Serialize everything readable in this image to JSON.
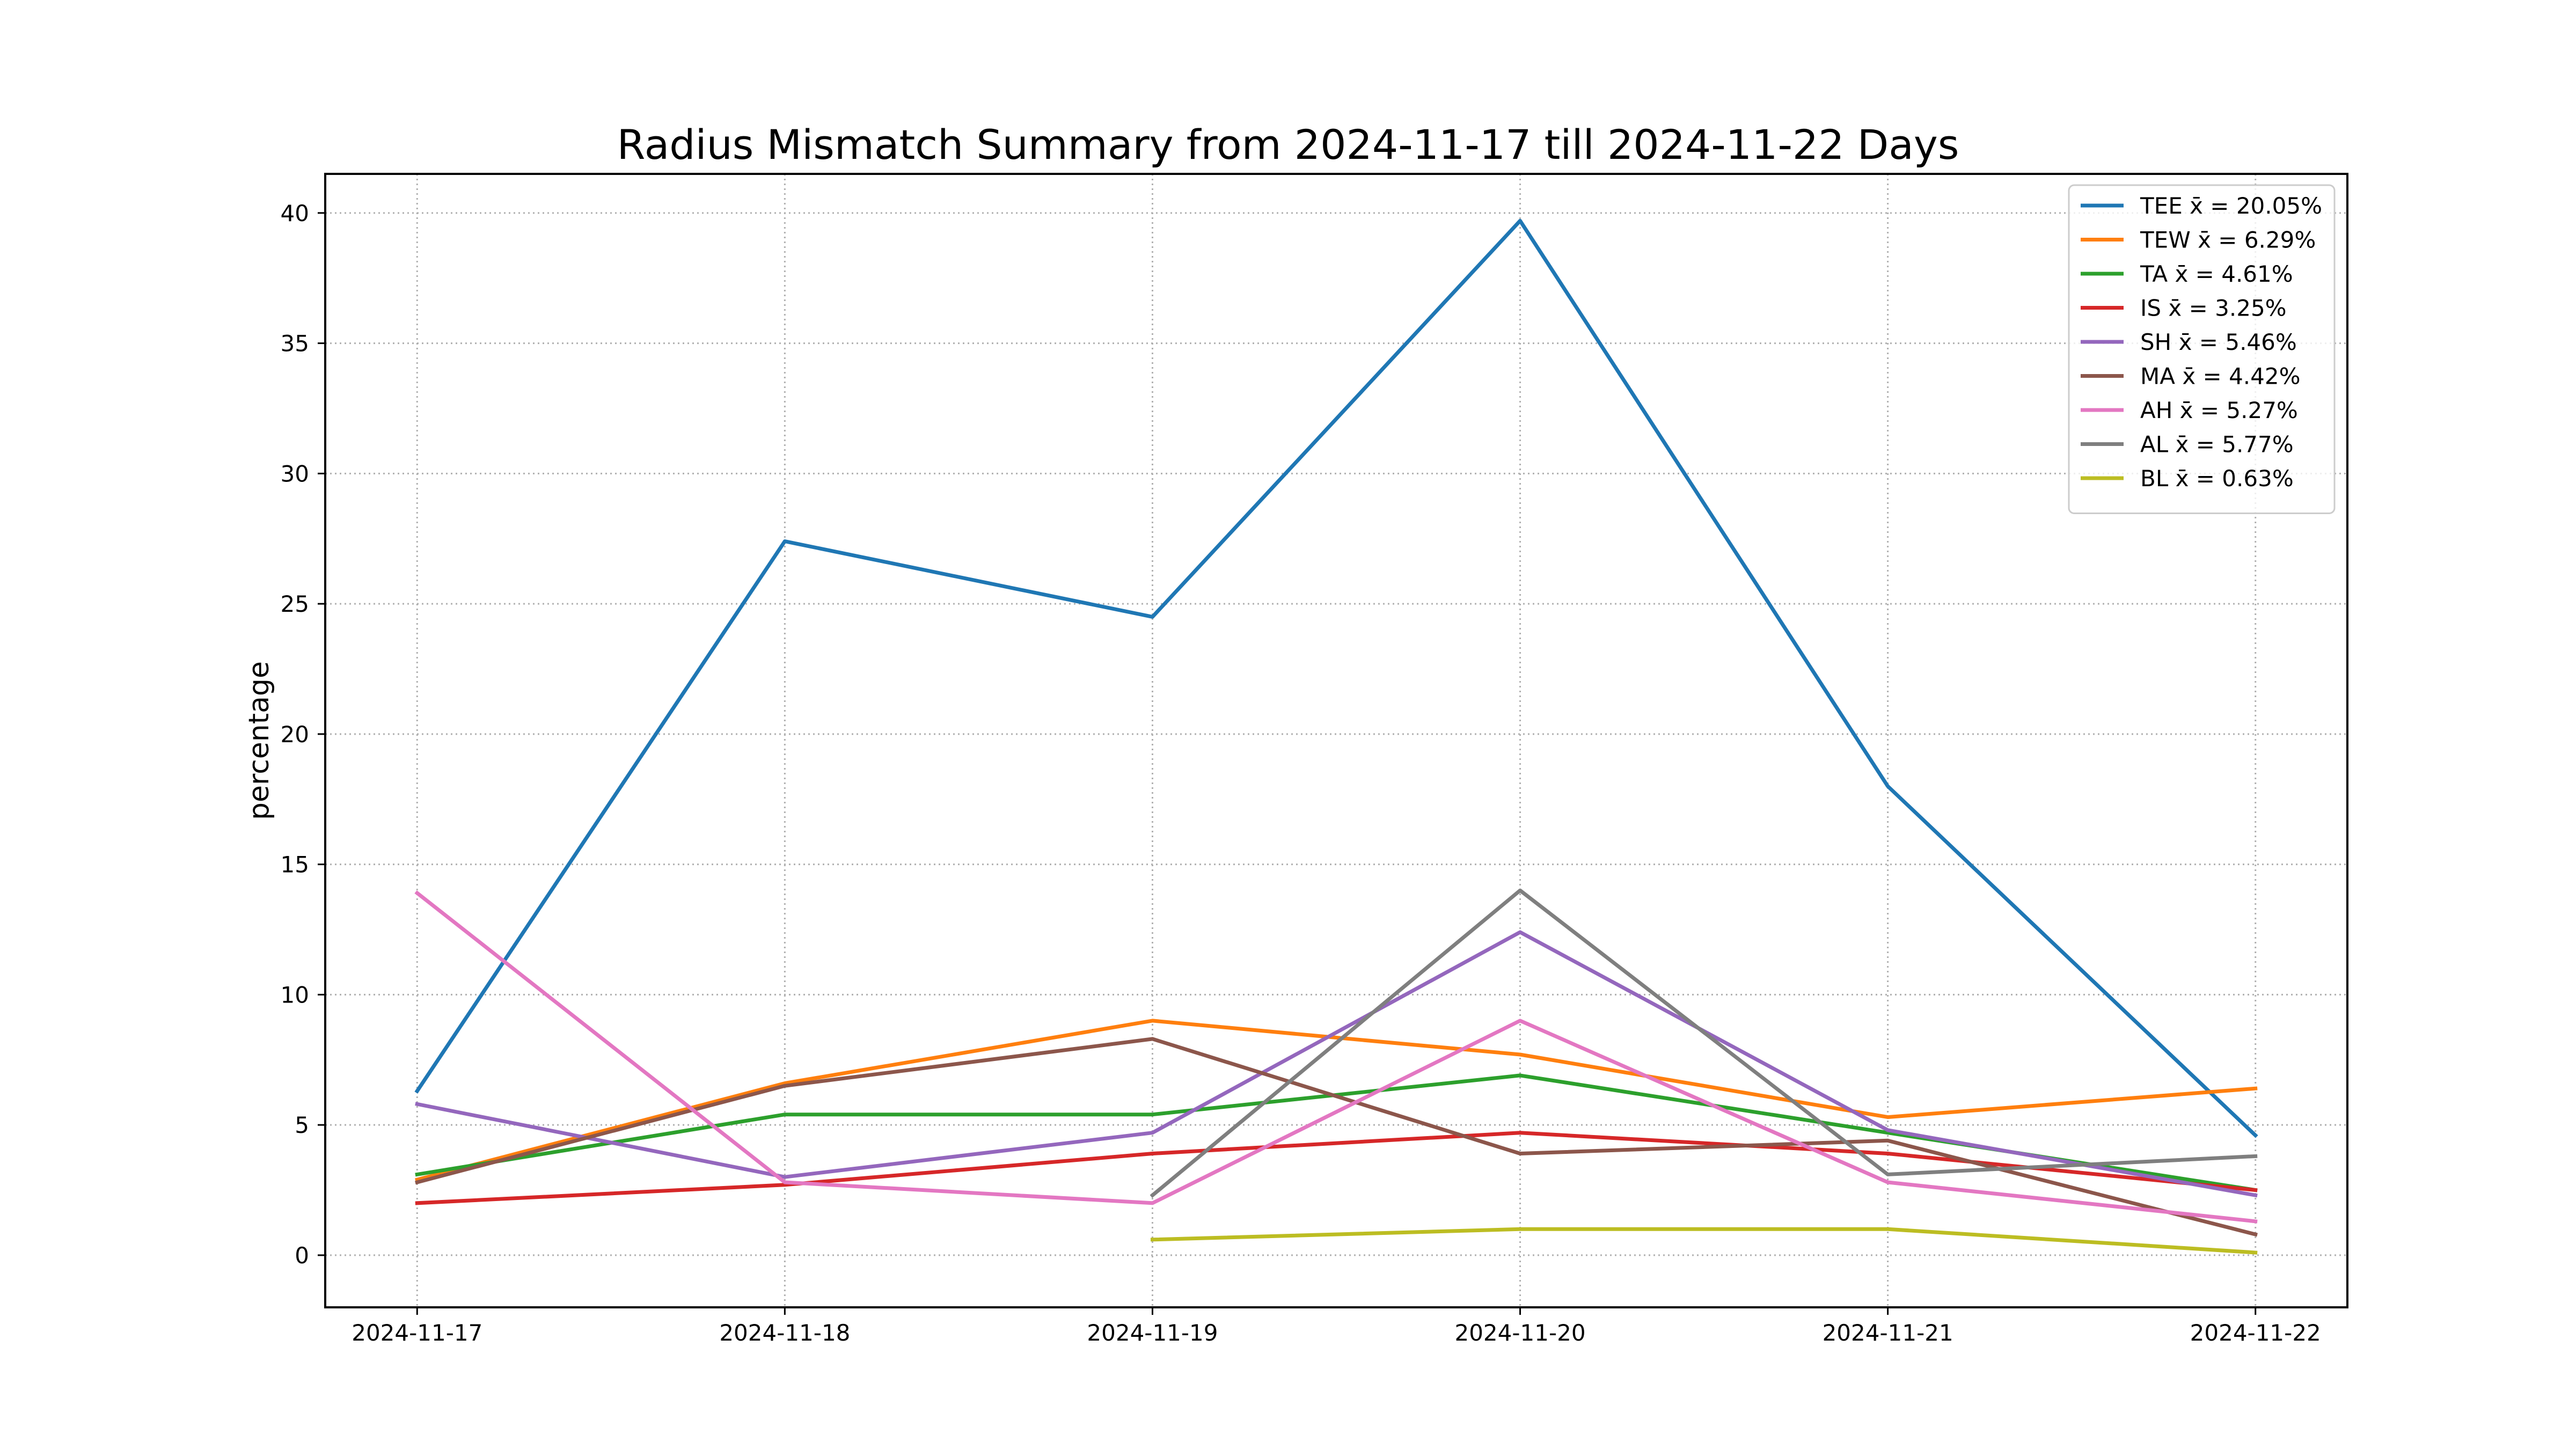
{
  "chart_data": {
    "type": "line",
    "title": "Radius Mismatch Summary from 2024-11-17 till 2024-11-22 Days",
    "xlabel": "",
    "ylabel": "percentage",
    "categories": [
      "2024-11-17",
      "2024-11-18",
      "2024-11-19",
      "2024-11-20",
      "2024-11-21",
      "2024-11-22"
    ],
    "ylim": [
      -2,
      41.5
    ],
    "yticks": [
      0,
      5,
      10,
      15,
      20,
      25,
      30,
      35,
      40
    ],
    "grid": true,
    "legend_position": "top-right",
    "series": [
      {
        "name": "TEE x̄ = 20.05%",
        "color": "#1f77b4",
        "values": [
          6.3,
          27.4,
          24.5,
          39.7,
          18.0,
          4.6
        ]
      },
      {
        "name": "TEW x̄ = 6.29%",
        "color": "#ff7f0e",
        "values": [
          2.9,
          6.6,
          9.0,
          7.7,
          5.3,
          6.4
        ]
      },
      {
        "name": "TA x̄ = 4.61%",
        "color": "#2ca02c",
        "values": [
          3.1,
          5.4,
          5.4,
          6.9,
          4.7,
          2.5
        ]
      },
      {
        "name": "IS x̄ = 3.25%",
        "color": "#d62728",
        "values": [
          2.0,
          2.7,
          3.9,
          4.7,
          3.9,
          2.5
        ]
      },
      {
        "name": "SH x̄ = 5.46%",
        "color": "#9467bd",
        "values": [
          5.8,
          3.0,
          4.7,
          12.4,
          4.8,
          2.3
        ]
      },
      {
        "name": "MA x̄ = 4.42%",
        "color": "#8c564b",
        "values": [
          2.8,
          6.5,
          8.3,
          3.9,
          4.4,
          0.8
        ]
      },
      {
        "name": "AH x̄ = 5.27%",
        "color": "#e377c2",
        "values": [
          13.9,
          2.8,
          2.0,
          9.0,
          2.8,
          1.3
        ]
      },
      {
        "name": "AL x̄ = 5.77%",
        "color": "#7f7f7f",
        "values": [
          null,
          null,
          2.3,
          14.0,
          3.1,
          3.8
        ]
      },
      {
        "name": "BL x̄ = 0.63%",
        "color": "#bcbd22",
        "values": [
          null,
          null,
          0.6,
          1.0,
          1.0,
          0.1
        ]
      }
    ]
  }
}
